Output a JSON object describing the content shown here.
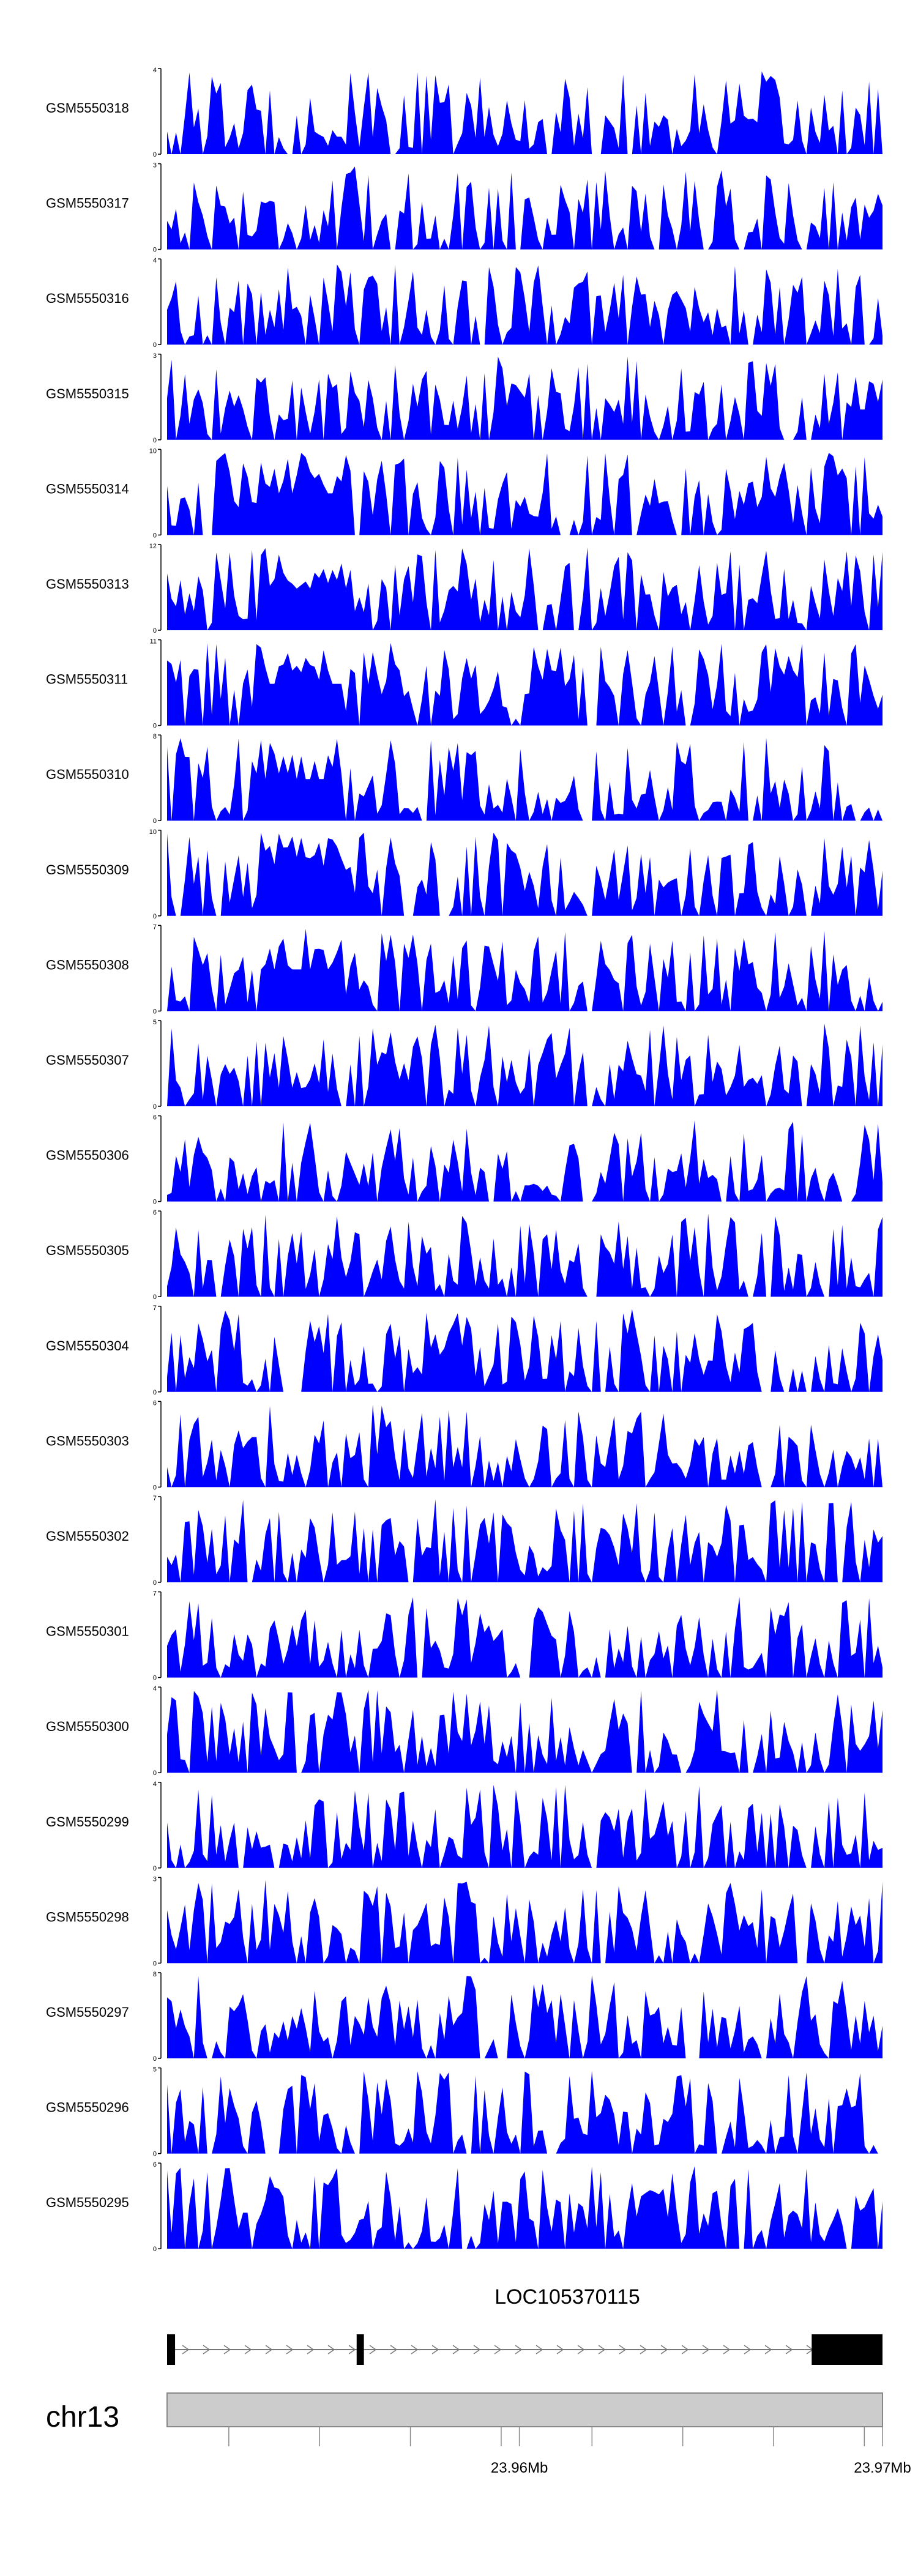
{
  "chart_data": {
    "type": "area",
    "fill_color": "#0000ff",
    "axis_color": "#000000",
    "x_range": [
      23.9503,
      23.97
    ],
    "x_unit": "Mb",
    "tracks": [
      {
        "name": "GSM5550318",
        "ymax": 4
      },
      {
        "name": "GSM5550317",
        "ymax": 3
      },
      {
        "name": "GSM5550316",
        "ymax": 4
      },
      {
        "name": "GSM5550315",
        "ymax": 3
      },
      {
        "name": "GSM5550314",
        "ymax": 10
      },
      {
        "name": "GSM5550313",
        "ymax": 12
      },
      {
        "name": "GSM5550311",
        "ymax": 11
      },
      {
        "name": "GSM5550310",
        "ymax": 8
      },
      {
        "name": "GSM5550309",
        "ymax": 10
      },
      {
        "name": "GSM5550308",
        "ymax": 7
      },
      {
        "name": "GSM5550307",
        "ymax": 5
      },
      {
        "name": "GSM5550306",
        "ymax": 6
      },
      {
        "name": "GSM5550305",
        "ymax": 6
      },
      {
        "name": "GSM5550304",
        "ymax": 7
      },
      {
        "name": "GSM5550303",
        "ymax": 6
      },
      {
        "name": "GSM5550302",
        "ymax": 7
      },
      {
        "name": "GSM5550301",
        "ymax": 7
      },
      {
        "name": "GSM5550300",
        "ymax": 4
      },
      {
        "name": "GSM5550299",
        "ymax": 4
      },
      {
        "name": "GSM5550298",
        "ymax": 3
      },
      {
        "name": "GSM5550297",
        "ymax": 8
      },
      {
        "name": "GSM5550296",
        "ymax": 5
      },
      {
        "name": "GSM5550295",
        "ymax": 6
      }
    ],
    "gene": {
      "name": "LOC105370115",
      "exons": [
        [
          23.9503,
          23.95052
        ],
        [
          23.95552,
          23.95572
        ],
        [
          23.96805,
          23.97
        ]
      ],
      "strand": "+"
    },
    "chromosome": {
      "label": "chr13",
      "tick_values": [
        23.952,
        23.9545,
        23.957,
        23.9595,
        23.962,
        23.9645,
        23.967,
        23.9695
      ],
      "labeled_ticks": [
        {
          "value": 23.96,
          "label": "23.96Mb"
        },
        {
          "value": 23.97,
          "label": "23.97Mb"
        }
      ]
    }
  }
}
